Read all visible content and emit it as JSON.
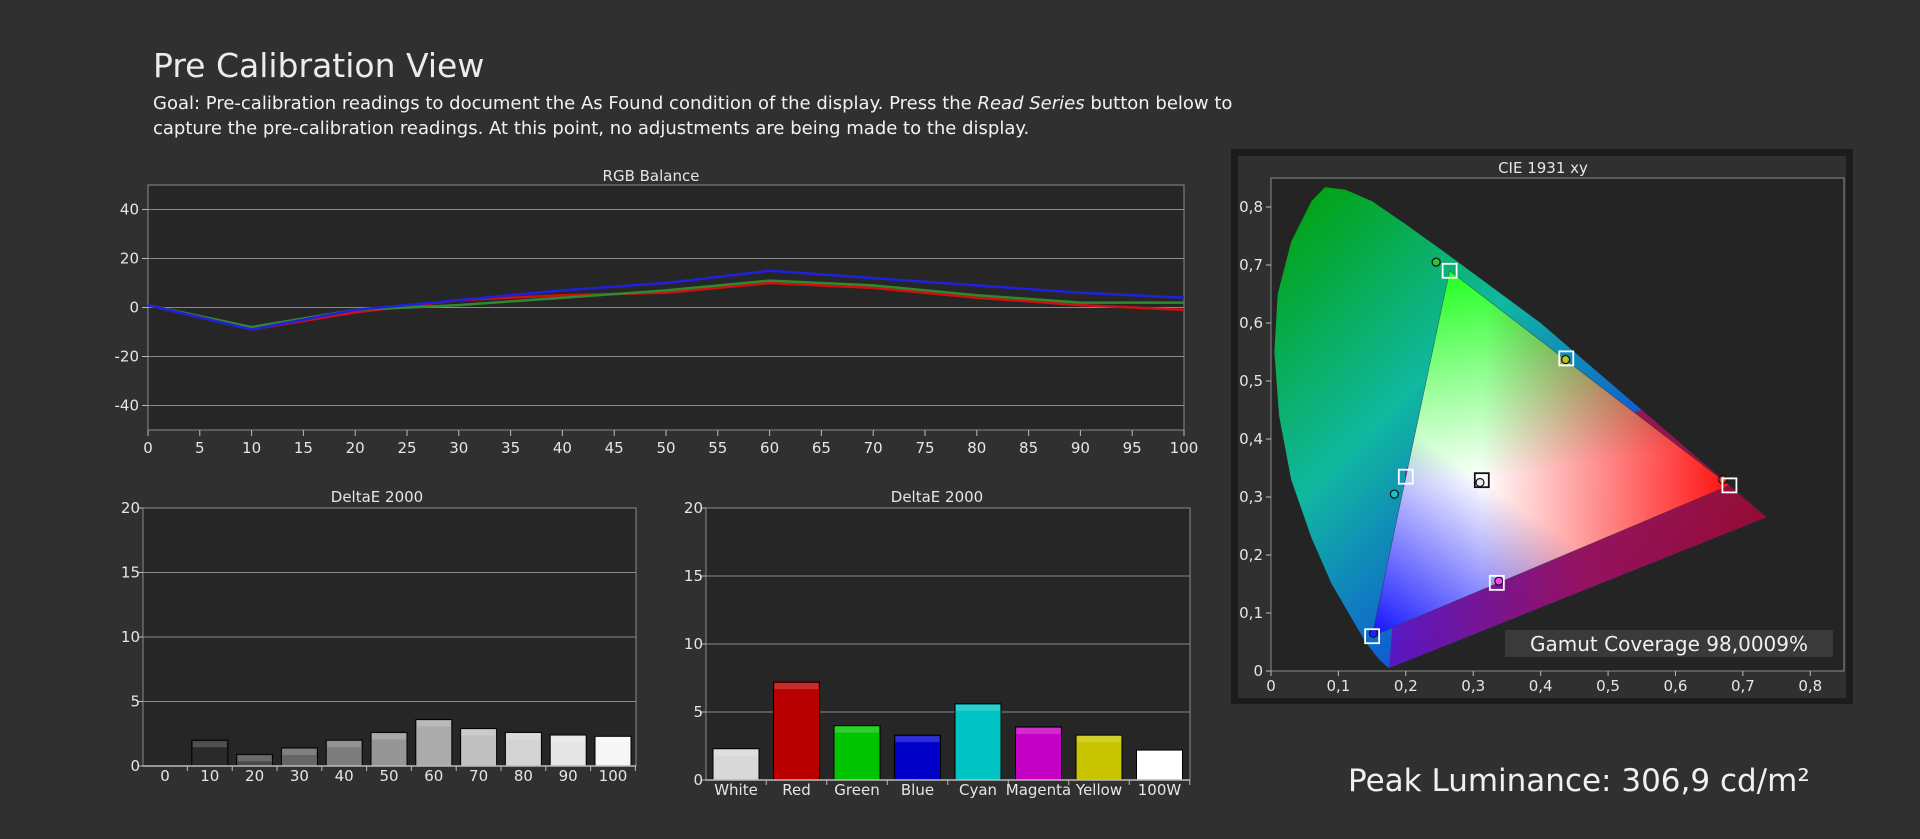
{
  "header": {
    "title": "Pre Calibration View",
    "goal_pre": "Goal: Pre-calibration readings to document the As Found condition of the display. Press the ",
    "goal_em": "Read Series",
    "goal_post": " button below to capture the pre-calibration readings. At this point, no adjustments are being made to the display."
  },
  "peak": "Peak Luminance: 306,9 cd/m²",
  "colors": {
    "red": "#d01010",
    "green": "#2f8a2f",
    "blue": "#2020dd",
    "background": "#303030",
    "plot_bg": "#262626",
    "grid": "#8a8a8a"
  },
  "chart_data": [
    {
      "id": "rgb",
      "type": "line",
      "title": "RGB Balance",
      "x": [
        0,
        10,
        20,
        30,
        40,
        50,
        60,
        70,
        80,
        90,
        100
      ],
      "xticks": [
        "0",
        "5",
        "10",
        "15",
        "20",
        "25",
        "30",
        "35",
        "40",
        "45",
        "50",
        "55",
        "60",
        "65",
        "70",
        "75",
        "80",
        "85",
        "90",
        "95",
        "100"
      ],
      "yticks": [
        "40",
        "20",
        "0",
        "-20",
        "-40"
      ],
      "ylim": [
        -50,
        50
      ],
      "xlim": [
        0,
        100
      ],
      "grid": true,
      "series": [
        {
          "color": "#d01010",
          "values": [
            1,
            -9,
            -2,
            3,
            5,
            6,
            10,
            8,
            4,
            1,
            -1
          ]
        },
        {
          "color": "#2f8a2f",
          "values": [
            1,
            -8,
            -1,
            1,
            4,
            7,
            11,
            9,
            5,
            2,
            2
          ]
        },
        {
          "color": "#2020dd",
          "values": [
            1,
            -9,
            -1,
            3,
            7,
            10,
            15,
            12,
            9,
            6,
            4
          ]
        }
      ]
    },
    {
      "id": "grayscale",
      "type": "bar",
      "title": "DeltaE 2000",
      "categories": [
        "0",
        "10",
        "20",
        "30",
        "40",
        "50",
        "60",
        "70",
        "80",
        "90",
        "100"
      ],
      "values": [
        0,
        2.0,
        0.9,
        1.4,
        2.0,
        2.6,
        3.6,
        2.9,
        2.6,
        2.4,
        2.3
      ],
      "colors": [
        "#111111",
        "#2a2a2a",
        "#4a4a4a",
        "#666666",
        "#7d7d7d",
        "#959595",
        "#ababab",
        "#c0c0c0",
        "#d4d4d4",
        "#e6e6e6",
        "#f6f6f6"
      ],
      "yticks": [
        "20",
        "15",
        "10",
        "5",
        "0"
      ],
      "ylim": [
        0,
        20
      ],
      "grid": true
    },
    {
      "id": "colors",
      "type": "bar",
      "title": "DeltaE 2000",
      "categories": [
        "White",
        "Red",
        "Green",
        "Blue",
        "Cyan",
        "Magenta",
        "Yellow",
        "100W"
      ],
      "values": [
        2.3,
        7.2,
        4.0,
        3.3,
        5.6,
        3.9,
        3.3,
        2.2
      ],
      "colors": [
        "#d8d8d8",
        "#b80000",
        "#00c400",
        "#0000c8",
        "#00c4c4",
        "#c400c4",
        "#c8c400",
        "#ffffff"
      ],
      "yticks": [
        "20",
        "15",
        "10",
        "5",
        "0"
      ],
      "ylim": [
        0,
        20
      ],
      "grid": true
    },
    {
      "id": "cie",
      "type": "scatter",
      "title": "CIE 1931 xy",
      "xticks": [
        "0",
        "0,1",
        "0,2",
        "0,3",
        "0,4",
        "0,5",
        "0,6",
        "0,7",
        "0,8"
      ],
      "yticks": [
        "0,8",
        "0,7",
        "0,6",
        "0,5",
        "0,4",
        "0,3",
        "0,2",
        "0,1",
        "0"
      ],
      "xlim": [
        0,
        0.85
      ],
      "ylim": [
        0,
        0.85
      ],
      "gamut_coverage": "Gamut Coverage 98,0009%",
      "targets": [
        {
          "name": "red",
          "x": 0.68,
          "y": 0.32
        },
        {
          "name": "green",
          "x": 0.265,
          "y": 0.69
        },
        {
          "name": "blue",
          "x": 0.15,
          "y": 0.06
        },
        {
          "name": "white",
          "x": 0.3127,
          "y": 0.329
        },
        {
          "name": "cyan",
          "x": 0.2,
          "y": 0.335
        },
        {
          "name": "magenta",
          "x": 0.335,
          "y": 0.152
        },
        {
          "name": "yellow",
          "x": 0.438,
          "y": 0.539
        }
      ],
      "measured": [
        {
          "name": "red",
          "x": 0.67,
          "y": 0.33,
          "color": "#ff3030"
        },
        {
          "name": "green",
          "x": 0.245,
          "y": 0.705,
          "color": "#30c030"
        },
        {
          "name": "blue",
          "x": 0.152,
          "y": 0.065,
          "color": "#2020ff"
        },
        {
          "name": "white",
          "x": 0.31,
          "y": 0.325,
          "color": "#eeeeee"
        },
        {
          "name": "cyan",
          "x": 0.183,
          "y": 0.305,
          "color": "#20c0c0"
        },
        {
          "name": "magenta",
          "x": 0.338,
          "y": 0.155,
          "color": "#ff40ff"
        },
        {
          "name": "yellow",
          "x": 0.437,
          "y": 0.537,
          "color": "#c0c020"
        }
      ]
    }
  ]
}
